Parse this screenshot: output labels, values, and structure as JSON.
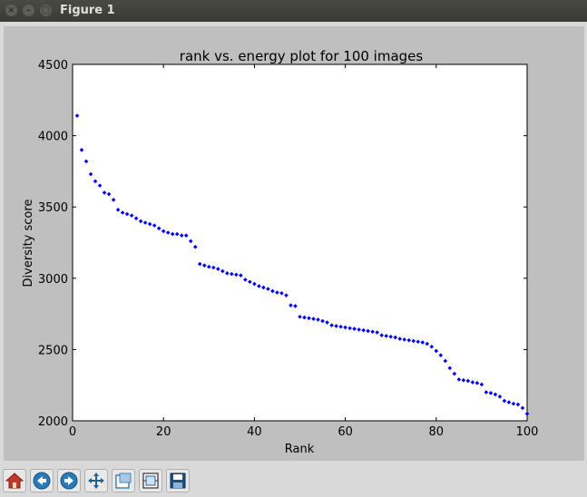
{
  "window": {
    "title": "Figure 1"
  },
  "toolbar": {
    "buttons": [
      {
        "icon": "home-icon"
      },
      {
        "icon": "back-arrow-icon"
      },
      {
        "icon": "forward-arrow-icon"
      },
      {
        "icon": "pan-move-icon"
      },
      {
        "icon": "zoom-rect-icon"
      },
      {
        "icon": "subplots-config-icon"
      },
      {
        "icon": "save-disk-icon"
      }
    ]
  },
  "chart_data": {
    "type": "scatter",
    "title": "rank vs. energy plot for 100 images",
    "xlabel": "Rank",
    "ylabel": "Diversity score",
    "xlim": [
      0,
      100
    ],
    "ylim": [
      2000,
      4500
    ],
    "xticks": [
      0,
      20,
      40,
      60,
      80,
      100
    ],
    "yticks": [
      2000,
      2500,
      3000,
      3500,
      4000,
      4500
    ],
    "marker_color": "#0000ff",
    "grid": false,
    "x": [
      1,
      2,
      3,
      4,
      5,
      6,
      7,
      8,
      9,
      10,
      11,
      12,
      13,
      14,
      15,
      16,
      17,
      18,
      19,
      20,
      21,
      22,
      23,
      24,
      25,
      26,
      27,
      28,
      29,
      30,
      31,
      32,
      33,
      34,
      35,
      36,
      37,
      38,
      39,
      40,
      41,
      42,
      43,
      44,
      45,
      46,
      47,
      48,
      49,
      50,
      51,
      52,
      53,
      54,
      55,
      56,
      57,
      58,
      59,
      60,
      61,
      62,
      63,
      64,
      65,
      66,
      67,
      68,
      69,
      70,
      71,
      72,
      73,
      74,
      75,
      76,
      77,
      78,
      79,
      80,
      81,
      82,
      83,
      84,
      85,
      86,
      87,
      88,
      89,
      90,
      91,
      92,
      93,
      94,
      95,
      96,
      97,
      98,
      99,
      100
    ],
    "y": [
      4140,
      3900,
      3820,
      3730,
      3680,
      3650,
      3600,
      3590,
      3550,
      3480,
      3460,
      3450,
      3440,
      3420,
      3400,
      3390,
      3380,
      3370,
      3350,
      3330,
      3320,
      3310,
      3310,
      3300,
      3300,
      3260,
      3220,
      3100,
      3090,
      3080,
      3075,
      3065,
      3050,
      3035,
      3030,
      3025,
      3020,
      2990,
      2975,
      2960,
      2945,
      2935,
      2925,
      2910,
      2900,
      2895,
      2880,
      2810,
      2805,
      2730,
      2725,
      2720,
      2715,
      2710,
      2700,
      2690,
      2670,
      2665,
      2660,
      2655,
      2650,
      2645,
      2640,
      2635,
      2630,
      2625,
      2620,
      2600,
      2595,
      2590,
      2585,
      2575,
      2570,
      2565,
      2560,
      2555,
      2550,
      2540,
      2520,
      2490,
      2460,
      2420,
      2370,
      2330,
      2290,
      2285,
      2280,
      2270,
      2265,
      2255,
      2200,
      2195,
      2185,
      2170,
      2140,
      2130,
      2120,
      2115,
      2090,
      2050
    ]
  }
}
